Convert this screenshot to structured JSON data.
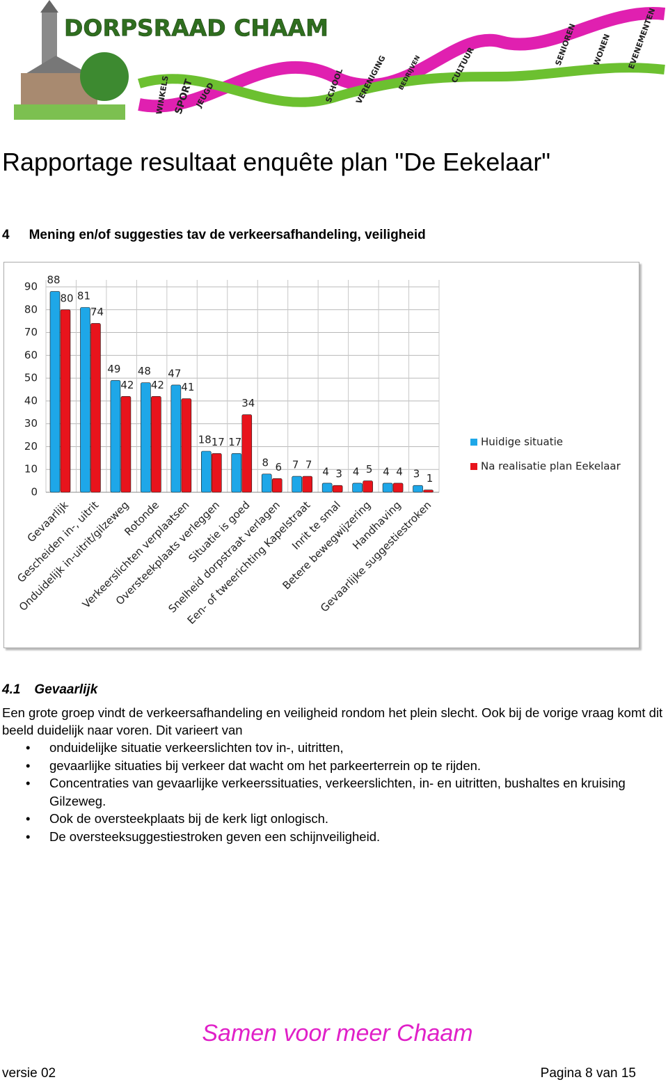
{
  "header": {
    "logo_title": "DORPSRAAD CHAAM",
    "helix_words": [
      "WINKELS",
      "SPORT",
      "JEUGD",
      "SCHOOL",
      "VERENIGING",
      "BEDRIJVEN",
      "CULTUUR",
      "SENIOREN",
      "WONEN",
      "EVENEMENTEN"
    ]
  },
  "page_title": "Rapportage resultaat enquête plan \"De Eekelaar\"",
  "section": {
    "number": "4",
    "title": "Mening en/of suggesties tav de verkeersafhandeling, veiligheid"
  },
  "chart_data": {
    "type": "bar",
    "categories": [
      "Gevaarlijk",
      "Gescheiden in-, uitrit",
      "Onduidelijk in-uitrit/gilzeweg",
      "Rotonde",
      "Verkeerslichten verplaatsen",
      "Oversteekplaats verleggen",
      "Situatie is goed",
      "Snelheid dorpstraat verlagen",
      "Een- of tweerichting Kapelstraat",
      "Inrit te smal",
      "Betere bewegwijzering",
      "Handhaving",
      "Gevaarlijke suggestiestroken"
    ],
    "series": [
      {
        "name": "Huidige situatie",
        "color": "#1ea7e8",
        "values": [
          88,
          81,
          49,
          48,
          47,
          18,
          17,
          8,
          7,
          4,
          4,
          4,
          3
        ]
      },
      {
        "name": "Na realisatie plan Eekelaar",
        "color": "#e8141c",
        "values": [
          80,
          74,
          42,
          42,
          41,
          17,
          34,
          6,
          7,
          3,
          5,
          4,
          1
        ]
      }
    ],
    "ylim": [
      0,
      90
    ],
    "yticks": [
      0,
      10,
      20,
      30,
      40,
      50,
      60,
      70,
      80,
      90
    ],
    "grid": true,
    "legend": "right"
  },
  "subsection": {
    "number": "4.1",
    "title": "Gevaarlijk",
    "paragraph": "Een grote groep vindt de verkeersafhandeling en veiligheid rondom het plein slecht. Ook bij de vorige vraag komt dit beeld duidelijk naar voren. Dit varieert van",
    "bullets": [
      "onduidelijke situatie verkeerslichten tov in-, uitritten,",
      "gevaarlijke situaties bij verkeer dat wacht om het parkeerterrein op te rijden.",
      "Concentraties van gevaarlijke verkeerssituaties, verkeerslichten, in- en uitritten, bushaltes en kruising Gilzeweg.",
      "Ook de oversteekplaats bij de kerk ligt onlogisch.",
      "De oversteeksuggestiestroken geven een schijnveiligheid."
    ]
  },
  "footer": {
    "slogan": "Samen voor meer Chaam",
    "version": "versie 02",
    "page": "Pagina 8 van 15"
  }
}
